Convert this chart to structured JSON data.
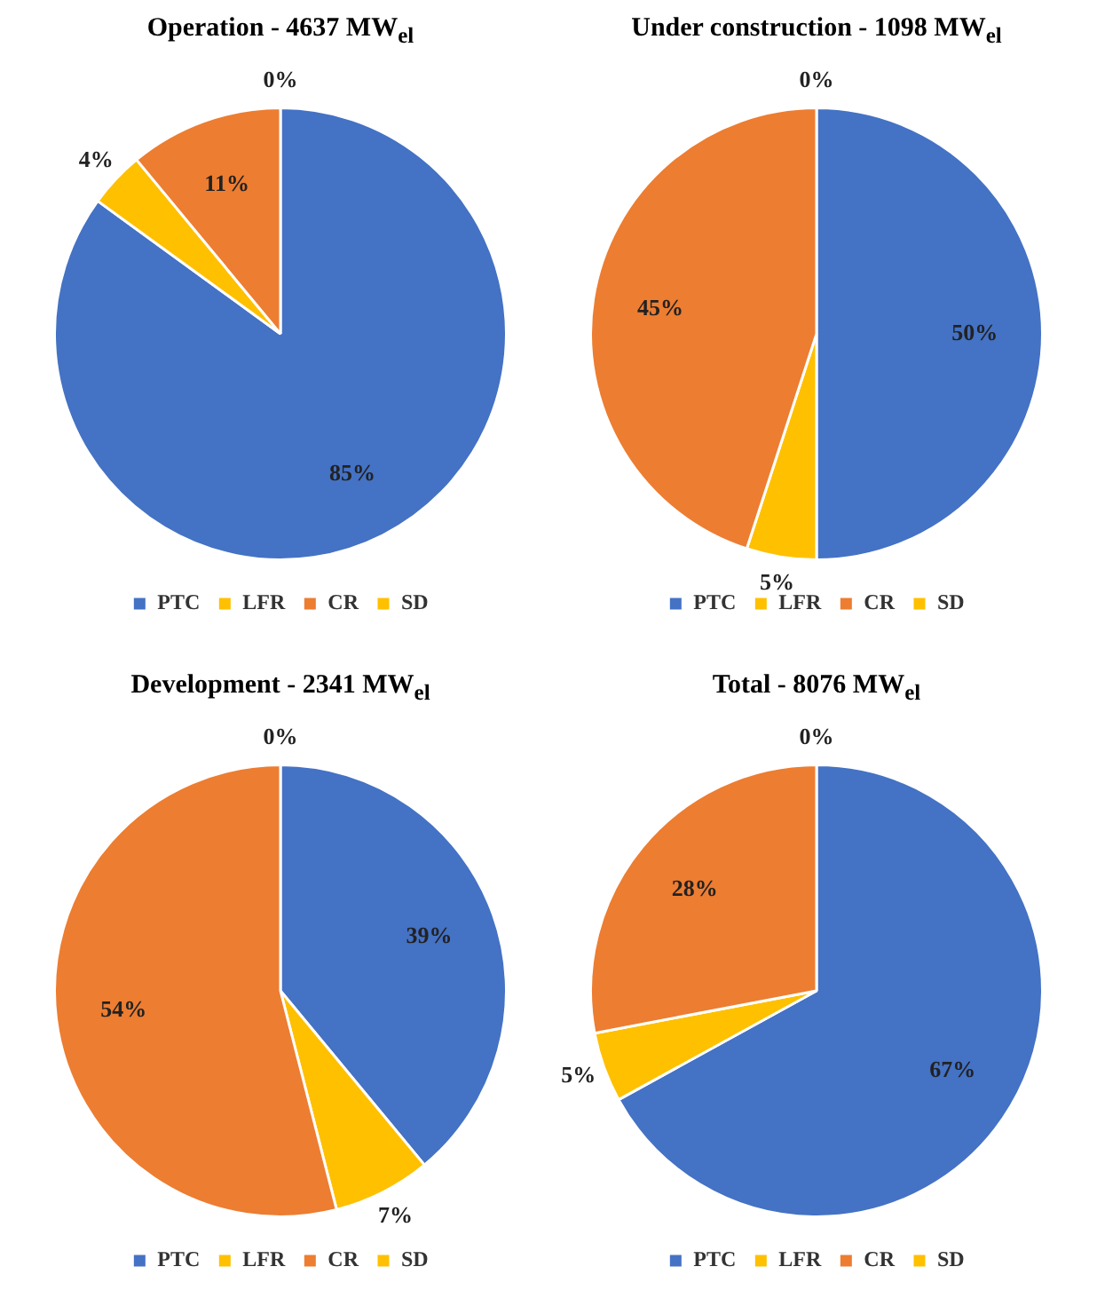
{
  "chart_data": [
    {
      "type": "pie",
      "title": "Operation - 4637 MW$_{el}$",
      "categories": [
        "PTC",
        "LFR",
        "CR",
        "SD"
      ],
      "values": [
        85,
        4,
        11,
        0
      ],
      "colors": [
        "#4472c4",
        "#ffc000",
        "#ed7d31",
        "#ffc000"
      ],
      "value_labels": [
        "85%",
        "4%",
        "11%",
        "0%"
      ],
      "legend": "bottom"
    },
    {
      "type": "pie",
      "title": "Under construction - 1098 MW$_{el}$",
      "categories": [
        "PTC",
        "LFR",
        "CR",
        "SD"
      ],
      "values": [
        50,
        5,
        45,
        0
      ],
      "colors": [
        "#4472c4",
        "#ffc000",
        "#ed7d31",
        "#ffc000"
      ],
      "value_labels": [
        "50%",
        "5%",
        "45%",
        "0%"
      ],
      "legend": "bottom"
    },
    {
      "type": "pie",
      "title": "Development - 2341 MW$_{el}$",
      "categories": [
        "PTC",
        "LFR",
        "CR",
        "SD"
      ],
      "values": [
        39,
        7,
        54,
        0
      ],
      "colors": [
        "#4472c4",
        "#ffc000",
        "#ed7d31",
        "#ffc000"
      ],
      "value_labels": [
        "39%",
        "7%",
        "54%",
        "0%"
      ],
      "legend": "bottom"
    },
    {
      "type": "pie",
      "title": "Total - 8076 MW$_{el}$",
      "categories": [
        "PTC",
        "LFR",
        "CR",
        "SD"
      ],
      "values": [
        67,
        5,
        28,
        0
      ],
      "colors": [
        "#4472c4",
        "#ffc000",
        "#ed7d31",
        "#ffc000"
      ],
      "value_labels": [
        "67%",
        "5%",
        "28%",
        "0%"
      ],
      "legend": "bottom"
    }
  ]
}
